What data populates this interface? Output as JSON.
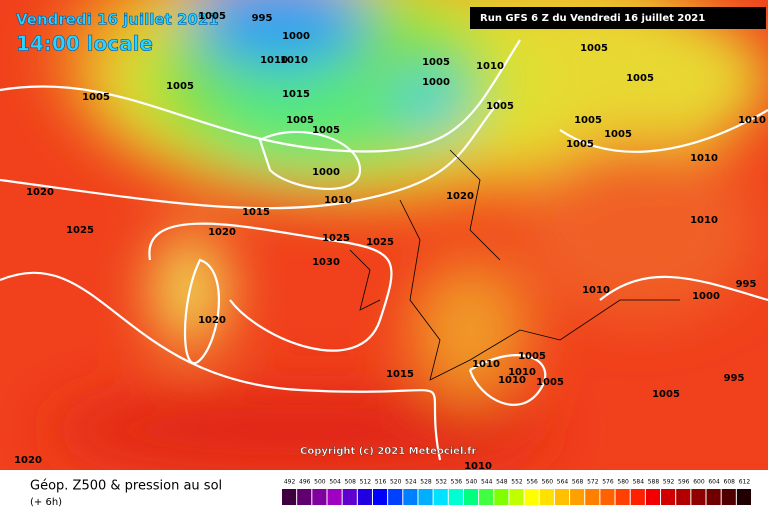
{
  "header": {
    "date": "Vendredi 16 juillet 2021",
    "time": "14:00 locale",
    "run": "Run GFS 6 Z du Vendredi 16 juillet 2021"
  },
  "copyright": "Copyright (c) 2021 Meteociel.fr",
  "footer": {
    "title": "Géop. Z500 & pression au sol",
    "lead": "(+ 6h)"
  },
  "isobar_labels": [
    1005,
    995,
    1000,
    1010,
    1010,
    1005,
    1005,
    1015,
    1005,
    1005,
    1000,
    1010,
    1015,
    1020,
    1025,
    1020,
    1025,
    1025,
    1030,
    1020,
    1005,
    1000,
    1010,
    1005,
    1005,
    1005,
    1005,
    1005,
    1005,
    1010,
    1010,
    1020,
    1010,
    1000,
    995,
    1005,
    1010,
    1010,
    1010,
    1005,
    1015,
    1005,
    995,
    1020,
    1010,
    1010
  ],
  "scale": [
    492,
    496,
    500,
    504,
    508,
    512,
    516,
    520,
    524,
    528,
    532,
    536,
    540,
    544,
    548,
    552,
    556,
    560,
    564,
    568,
    572,
    576,
    580,
    584,
    588,
    592,
    596,
    600,
    604,
    608,
    612
  ]
}
